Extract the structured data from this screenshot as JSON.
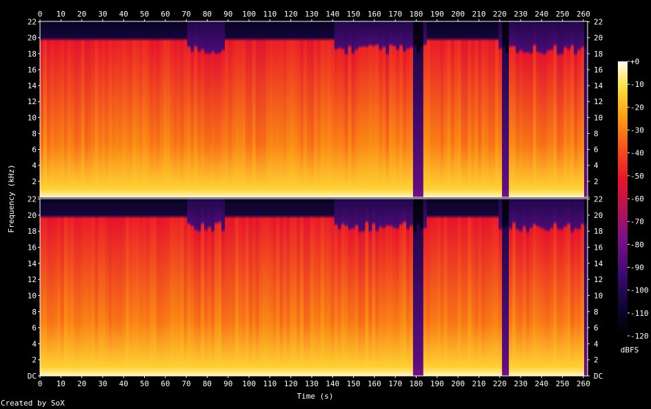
{
  "chart_data": {
    "type": "heatmap",
    "subtype": "spectrogram",
    "xlabel": "Time (s)",
    "ylabel": "Frequency (kHz)",
    "x_ticks": [
      0,
      10,
      20,
      30,
      40,
      50,
      60,
      70,
      80,
      90,
      100,
      110,
      120,
      130,
      140,
      150,
      160,
      170,
      180,
      190,
      200,
      210,
      220,
      230,
      240,
      250,
      260
    ],
    "xlim": [
      0,
      262
    ],
    "ylim_khz": [
      0,
      22.05
    ],
    "y_ticks": [
      "DC",
      "2",
      "4",
      "6",
      "8",
      "10",
      "12",
      "14",
      "16",
      "18",
      "20",
      "22"
    ],
    "channels": 2,
    "colorbar": {
      "label": "dBFS",
      "ticks": [
        "+0",
        "-10",
        "-20",
        "-30",
        "-40",
        "-50",
        "-60",
        "-70",
        "-80",
        "-90",
        "-100",
        "-110",
        "-120"
      ],
      "range_db": [
        -120,
        0
      ]
    },
    "lowpass_cutoff_khz": 20,
    "segments_high_cutoff": [
      [
        0,
        71
      ],
      [
        89,
        141
      ],
      [
        185,
        220
      ]
    ],
    "dropouts_s": [
      [
        178,
        184
      ],
      [
        221,
        224
      ],
      [
        261,
        262
      ]
    ]
  },
  "footer": {
    "credit": "Created by SoX"
  }
}
